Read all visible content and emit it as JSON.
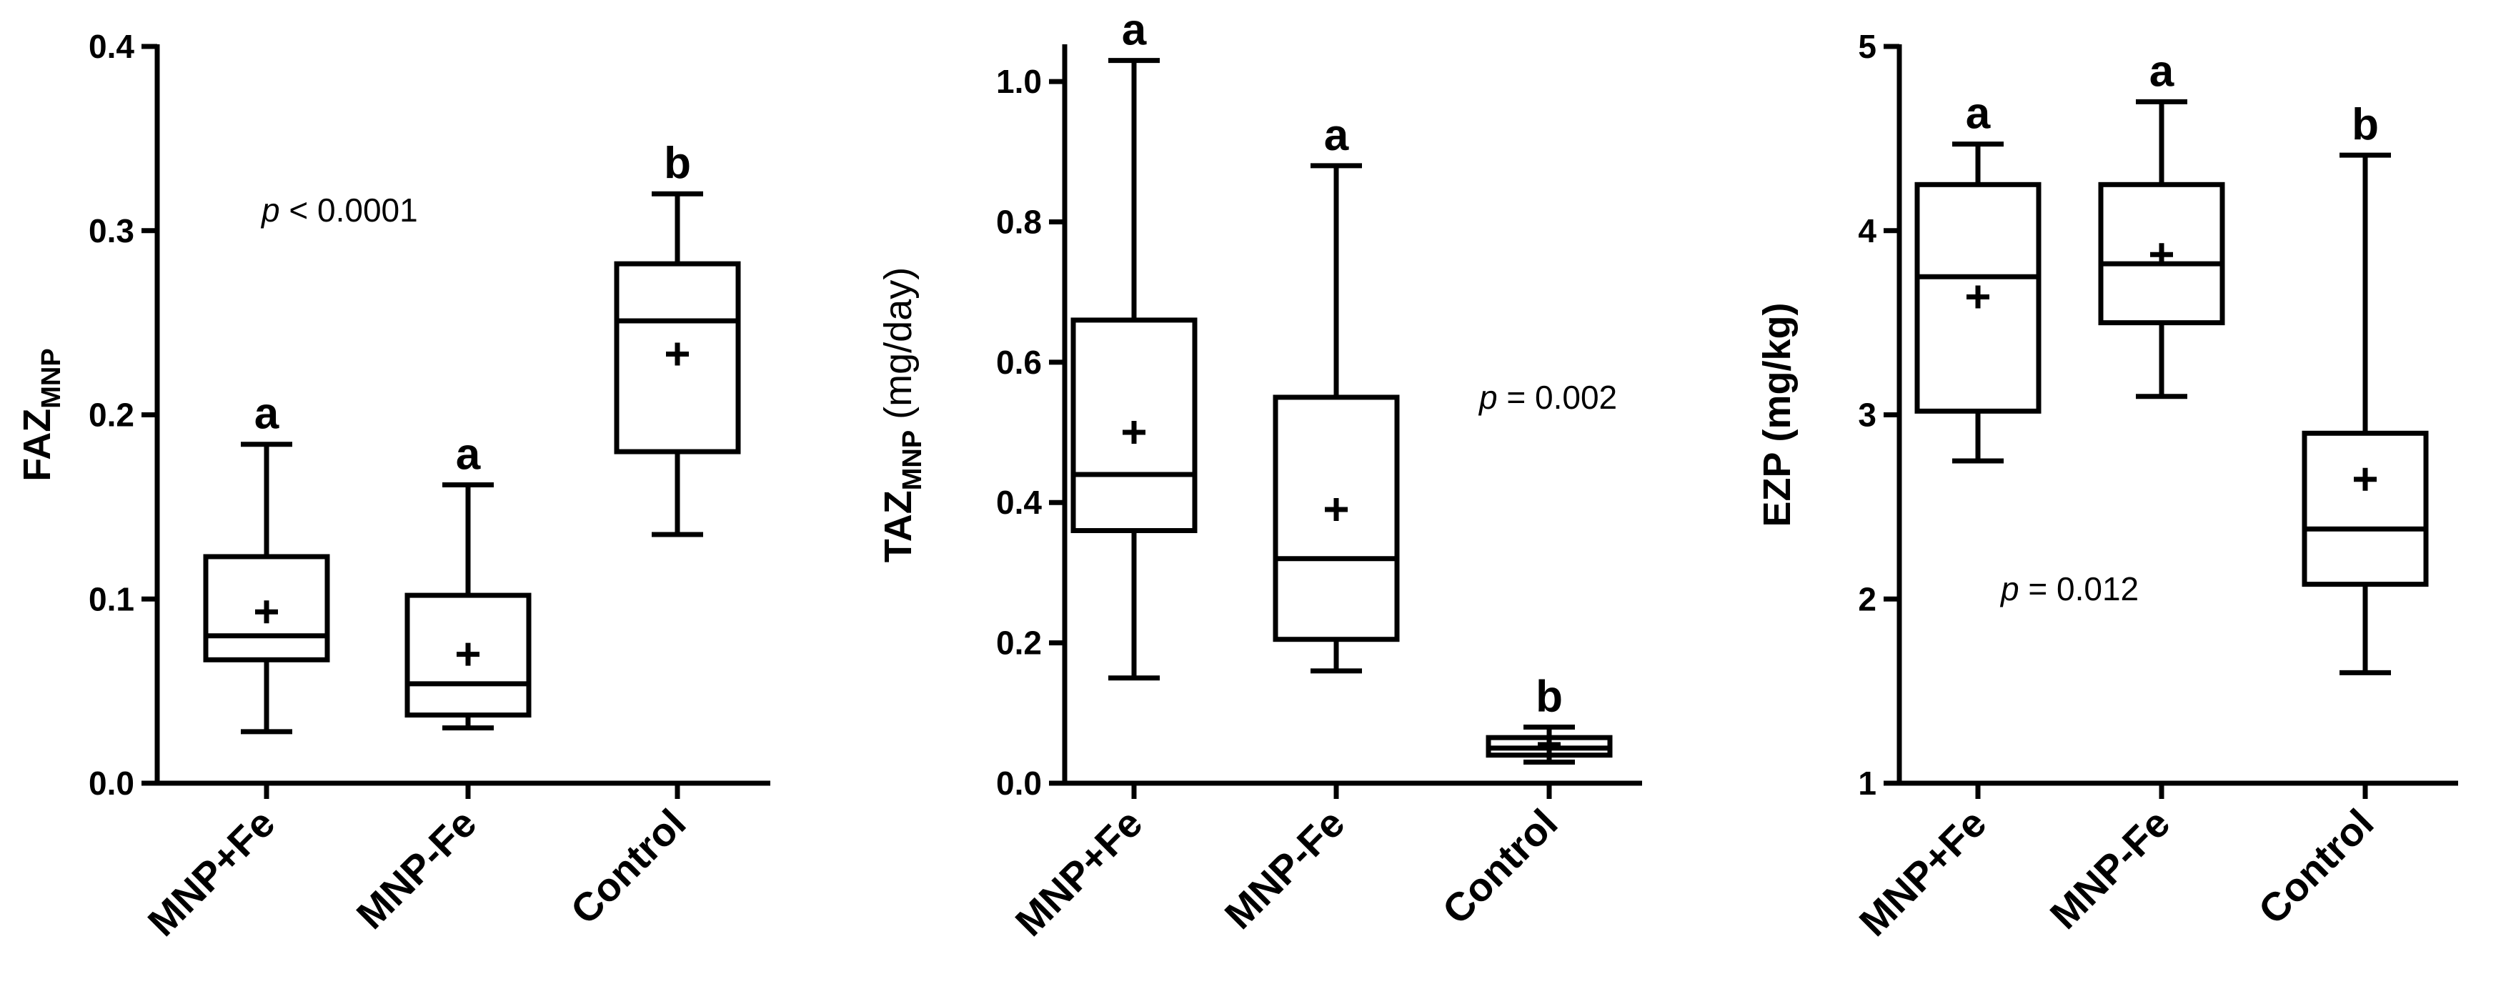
{
  "chart_data": [
    {
      "type": "box",
      "ylabel": "FAZ",
      "ylabel_sub": "MNP",
      "ylim": [
        0,
        0.4
      ],
      "yticks": [
        "0.0",
        "0.1",
        "0.2",
        "0.3",
        "0.4"
      ],
      "categories": [
        "MNP+Fe",
        "MNP-Fe",
        "Control"
      ],
      "boxes": [
        {
          "min": 0.028,
          "q1": 0.067,
          "median": 0.08,
          "q3": 0.123,
          "max": 0.184,
          "mean": 0.093,
          "letter": "a"
        },
        {
          "min": 0.03,
          "q1": 0.037,
          "median": 0.054,
          "q3": 0.102,
          "max": 0.162,
          "mean": 0.07,
          "letter": "a"
        },
        {
          "min": 0.135,
          "q1": 0.18,
          "median": 0.251,
          "q3": 0.282,
          "max": 0.32,
          "mean": 0.233,
          "letter": "b"
        }
      ],
      "annotation_italic": "p",
      "annotation_rest": " < 0.0001"
    },
    {
      "type": "box",
      "ylabel": "TAZ",
      "ylabel_sub": "MNP",
      "ylabel_unit": " (mg/day)",
      "ylim": [
        0,
        1.05
      ],
      "yticks": [
        "0.0",
        "0.2",
        "0.4",
        "0.6",
        "0.8",
        "1.0"
      ],
      "categories": [
        "MNP+Fe",
        "MNP-Fe",
        "Control"
      ],
      "boxes": [
        {
          "min": 0.15,
          "q1": 0.36,
          "median": 0.44,
          "q3": 0.66,
          "max": 1.03,
          "mean": 0.5,
          "letter": "a"
        },
        {
          "min": 0.16,
          "q1": 0.205,
          "median": 0.32,
          "q3": 0.55,
          "max": 0.88,
          "mean": 0.39,
          "letter": "a"
        },
        {
          "min": 0.03,
          "q1": 0.04,
          "median": 0.05,
          "q3": 0.065,
          "max": 0.08,
          "mean": 0.055,
          "letter": "b"
        }
      ],
      "annotation_italic": "p",
      "annotation_rest": " = 0.002"
    },
    {
      "type": "box",
      "ylabel": "EZP (mg/kg)",
      "ylim": [
        1,
        5
      ],
      "yticks": [
        "1",
        "2",
        "3",
        "4",
        "5"
      ],
      "categories": [
        "MNP+Fe",
        "MNP-Fe",
        "Control"
      ],
      "boxes": [
        {
          "min": 2.75,
          "q1": 3.02,
          "median": 3.75,
          "q3": 4.25,
          "max": 4.47,
          "mean": 3.64,
          "letter": "a"
        },
        {
          "min": 3.1,
          "q1": 3.5,
          "median": 3.82,
          "q3": 4.25,
          "max": 4.7,
          "mean": 3.87,
          "letter": "a"
        },
        {
          "min": 1.6,
          "q1": 2.08,
          "median": 2.38,
          "q3": 2.9,
          "max": 4.41,
          "mean": 2.65,
          "letter": "b"
        }
      ],
      "annotation_italic": "p",
      "annotation_rest": " = 0.012"
    }
  ]
}
